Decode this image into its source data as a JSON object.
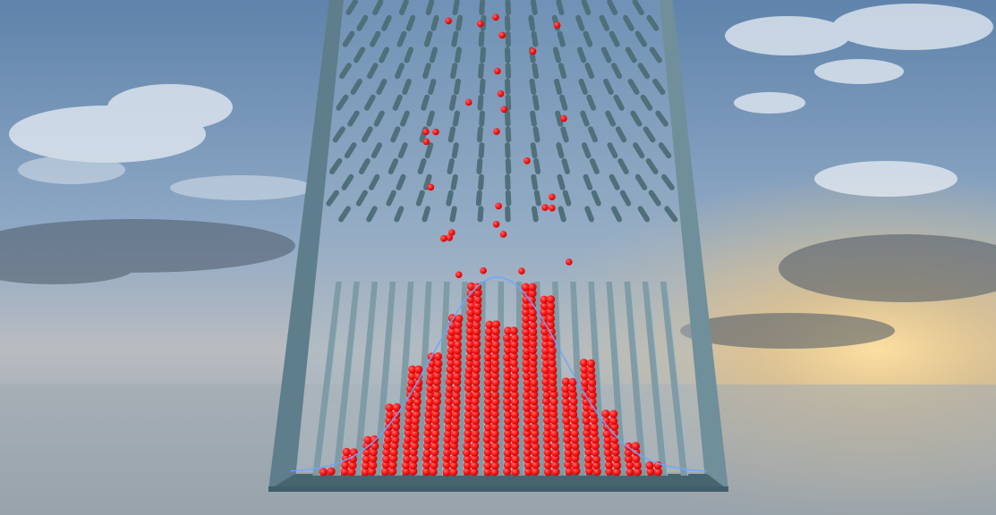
{
  "scene": {
    "title": "",
    "colors": {
      "sky_top": "#5f83ab",
      "sky_mid": "#8fa9c5",
      "horizon": "#c9c6bb",
      "sun_glow": "#f3c77a",
      "sea": "#9aa7b1",
      "frame": "#5d7e8a",
      "frame_dark": "#3f5e6a",
      "peg": "#4f6f7a",
      "divider": "#7d9aa4",
      "ball": "#ff1a1a",
      "curve": "#6aa6ff"
    },
    "peg_rows": 14,
    "bin_count": 20,
    "bin_fill_levels": [
      0.0,
      0.03,
      0.14,
      0.2,
      0.36,
      0.56,
      0.66,
      0.86,
      1.0,
      0.82,
      0.77,
      1.0,
      0.94,
      0.52,
      0.6,
      0.33,
      0.18,
      0.06,
      0.02,
      0.0
    ],
    "falling_balls": 30,
    "distribution_curve": "normal"
  }
}
